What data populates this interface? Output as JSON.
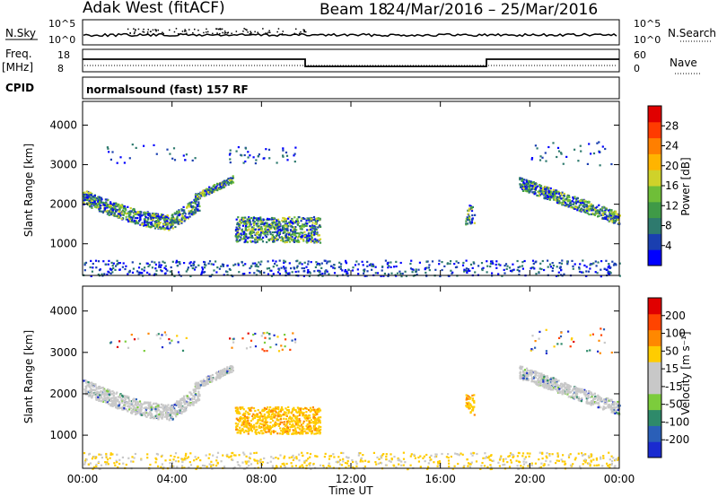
{
  "header": {
    "title": "Adak West (fitACF)",
    "beam": "Beam 18",
    "dates": "24/Mar/2016 – 25/Mar/2016"
  },
  "status": {
    "nsky_label": "N.Sky",
    "nsearch_label": "N.Search",
    "freq_label_1": "Freq.",
    "freq_label_2": "[MHz]",
    "nave_label": "Nave",
    "cpid_label": "CPID",
    "cpid_text": "normalsound (fast) 157 RF",
    "noise_left_ticks": [
      "10^5",
      "10^0"
    ],
    "noise_right_ticks": [
      "10^5",
      "10^0"
    ],
    "freq_ticks": [
      "18",
      "8"
    ],
    "nave_ticks": [
      "60",
      "0"
    ]
  },
  "chart_data": [
    {
      "type": "heatmap",
      "name": "power",
      "ylabel": "Slant Range [km]",
      "yticks": [
        "1000",
        "2000",
        "3000",
        "4000"
      ],
      "ylim": [
        200,
        4600
      ],
      "xlim": [
        0,
        24
      ],
      "colorbar_label": "Power [dB]",
      "colorbar_ticks": [
        "4",
        "8",
        "12",
        "16",
        "20",
        "24",
        "28"
      ],
      "colors": [
        "#0000ff",
        "#1a3fb0",
        "#2e7a6e",
        "#3f9a47",
        "#6fbe38",
        "#cfd22a",
        "#ffb400",
        "#ff7f00",
        "#ff3b00",
        "#e00000"
      ]
    },
    {
      "type": "heatmap",
      "name": "velocity",
      "ylabel": "Slant Range [km]",
      "yticks": [
        "1000",
        "2000",
        "3000",
        "4000"
      ],
      "ylim": [
        200,
        4600
      ],
      "xlim": [
        0,
        24
      ],
      "colorbar_label": "Velocity [m s⁻¹]",
      "colorbar_ticks": [
        "200",
        "100",
        "50",
        "15",
        "-15",
        "-50",
        "-100",
        "-200"
      ],
      "colors": [
        "#1a2bd0",
        "#2a5fb8",
        "#2e8a6a",
        "#7ccc3c",
        "#c8c8c8",
        "#c8c8c8",
        "#ffcc00",
        "#ff8800",
        "#ff4400",
        "#e00000"
      ]
    }
  ],
  "xaxis": {
    "ticks": [
      "00:00",
      "04:00",
      "08:00",
      "12:00",
      "16:00",
      "20:00",
      "00:00"
    ],
    "label": "Time UT"
  }
}
